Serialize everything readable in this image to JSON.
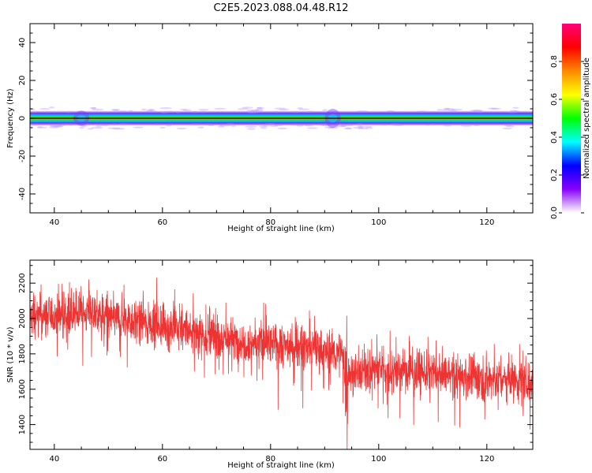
{
  "title": "C2E5.2023.088.04.48.R12",
  "chart_data": [
    {
      "type": "heatmap",
      "xlabel": "Height of straight line (km)",
      "ylabel": "Frequency (Hz)",
      "xlim": [
        35.5,
        128.5
      ],
      "ylim": [
        -50,
        50
      ],
      "xticks": [
        40,
        60,
        80,
        100,
        120
      ],
      "yticks": [
        -40,
        -20,
        0,
        20,
        40
      ],
      "band_center_hz": 0,
      "band_halfwidth_hz": 3,
      "band_features": [
        {
          "x": 45,
          "halfwidth_hz": 4
        },
        {
          "x": 91.5,
          "halfwidth_hz": 5
        }
      ],
      "colorbar": {
        "label": "Normalized spectral amplitude",
        "range": [
          0.0,
          1.0
        ],
        "ticks": [
          0.0,
          0.2,
          0.4,
          0.6,
          0.8
        ],
        "colors": [
          "#ffffff",
          "#8800ff",
          "#0000ff",
          "#00ffff",
          "#00ff00",
          "#ffff00",
          "#ff8800",
          "#ff0000",
          "#ff0077"
        ]
      }
    },
    {
      "type": "line",
      "xlabel": "Height of straight line (km)",
      "ylabel": "SNR (10 * v/v)",
      "xlim": [
        35.5,
        128.5
      ],
      "ylim": [
        1260,
        2330
      ],
      "xticks": [
        40,
        60,
        80,
        100,
        120
      ],
      "yticks": [
        1400,
        1600,
        1800,
        2000,
        2200
      ],
      "color": "#ee3333",
      "trend": {
        "x": [
          36,
          45,
          55,
          65,
          75,
          85,
          93,
          94,
          100,
          110,
          120,
          128
        ],
        "y": [
          2010,
          2030,
          1990,
          1930,
          1870,
          1840,
          1800,
          1690,
          1720,
          1690,
          1660,
          1650
        ]
      },
      "noise_amplitude": 110
    }
  ]
}
